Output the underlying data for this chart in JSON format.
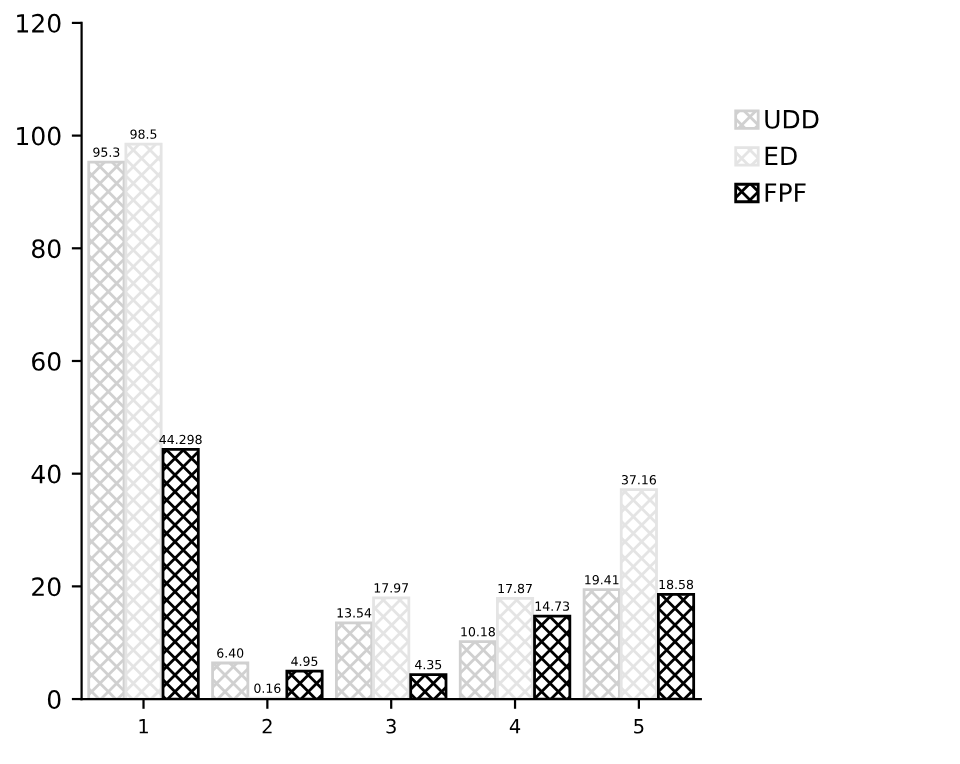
{
  "chart_data": {
    "type": "bar",
    "categories": [
      "1",
      "2",
      "3",
      "4",
      "5"
    ],
    "series": [
      {
        "name": "UDD",
        "color": "#d0d0d0",
        "values": [
          95.3,
          6.4,
          13.54,
          10.18,
          19.41
        ],
        "value_labels": [
          "95.3",
          "6.40",
          "13.54",
          "10.18",
          "19.41"
        ]
      },
      {
        "name": "ED",
        "color": "#e4e4e4",
        "values": [
          98.5,
          0.16,
          17.97,
          17.87,
          37.16
        ],
        "value_labels": [
          "98.5",
          "0.16",
          "17.97",
          "17.87",
          "37.16"
        ]
      },
      {
        "name": "FPF",
        "color": "#000000",
        "values": [
          44.298,
          4.95,
          4.35,
          14.73,
          18.58
        ],
        "value_labels": [
          "44.298",
          "4.95",
          "4.35",
          "14.73",
          "18.58"
        ]
      }
    ],
    "ylim": [
      0,
      120
    ],
    "yticks": [
      0,
      20,
      40,
      60,
      80,
      100,
      120
    ],
    "grid": false,
    "legend": "right"
  }
}
